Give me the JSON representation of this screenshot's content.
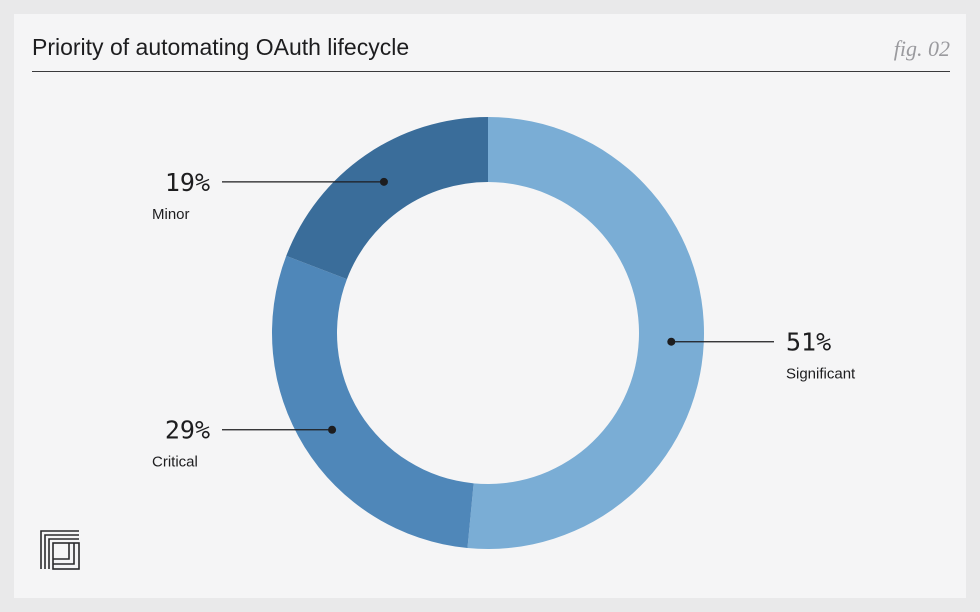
{
  "header": {
    "title": "Priority of automating OAuth lifecycle",
    "fig_label": "fig. 02"
  },
  "logo_icon": "stacked-squares-logo",
  "chart_data": {
    "type": "pie",
    "donut": true,
    "categories": [
      "Significant",
      "Critical",
      "Minor"
    ],
    "values": [
      51,
      29,
      19
    ],
    "value_labels": [
      "51%",
      "29%",
      "19%"
    ],
    "colors": [
      "#7aadd5",
      "#4f87b9",
      "#3a6d9a"
    ]
  }
}
